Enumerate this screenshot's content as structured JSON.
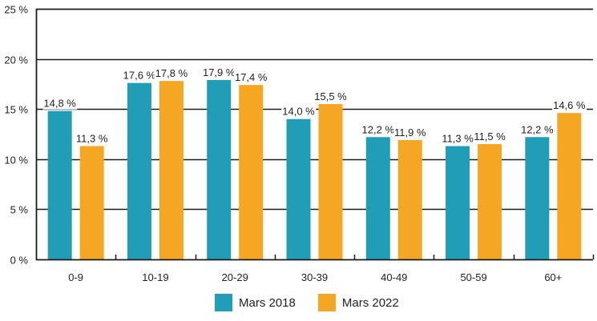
{
  "chart_data": {
    "type": "bar",
    "title": "",
    "xlabel": "",
    "ylabel": "",
    "categories": [
      "0-9",
      "10-19",
      "20-29",
      "30-39",
      "40-49",
      "50-59",
      "60+"
    ],
    "series": [
      {
        "name": "Mars 2018",
        "color": "#219db8",
        "values": [
          14.8,
          17.6,
          17.9,
          14.0,
          12.2,
          11.3,
          12.2
        ],
        "labels": [
          "14,8 %",
          "17,6 %",
          "17,9 %",
          "14,0 %",
          "12,2 %",
          "11,3 %",
          "12,2 %"
        ]
      },
      {
        "name": "Mars 2022",
        "color": "#f5a623",
        "values": [
          11.3,
          17.8,
          17.4,
          15.5,
          11.9,
          11.5,
          14.6
        ],
        "labels": [
          "11,3 %",
          "17,8 %",
          "17,4 %",
          "15,5 %",
          "11,9 %",
          "11,5 %",
          "14,6 %"
        ]
      }
    ],
    "ylim": [
      0,
      25
    ],
    "yticks": [
      0,
      5,
      10,
      15,
      20,
      25
    ],
    "ytick_labels": [
      "0 %",
      "5 %",
      "10 %",
      "15 %",
      "20 %",
      "25 %"
    ],
    "grid": true,
    "legend_position": "bottom-center"
  }
}
